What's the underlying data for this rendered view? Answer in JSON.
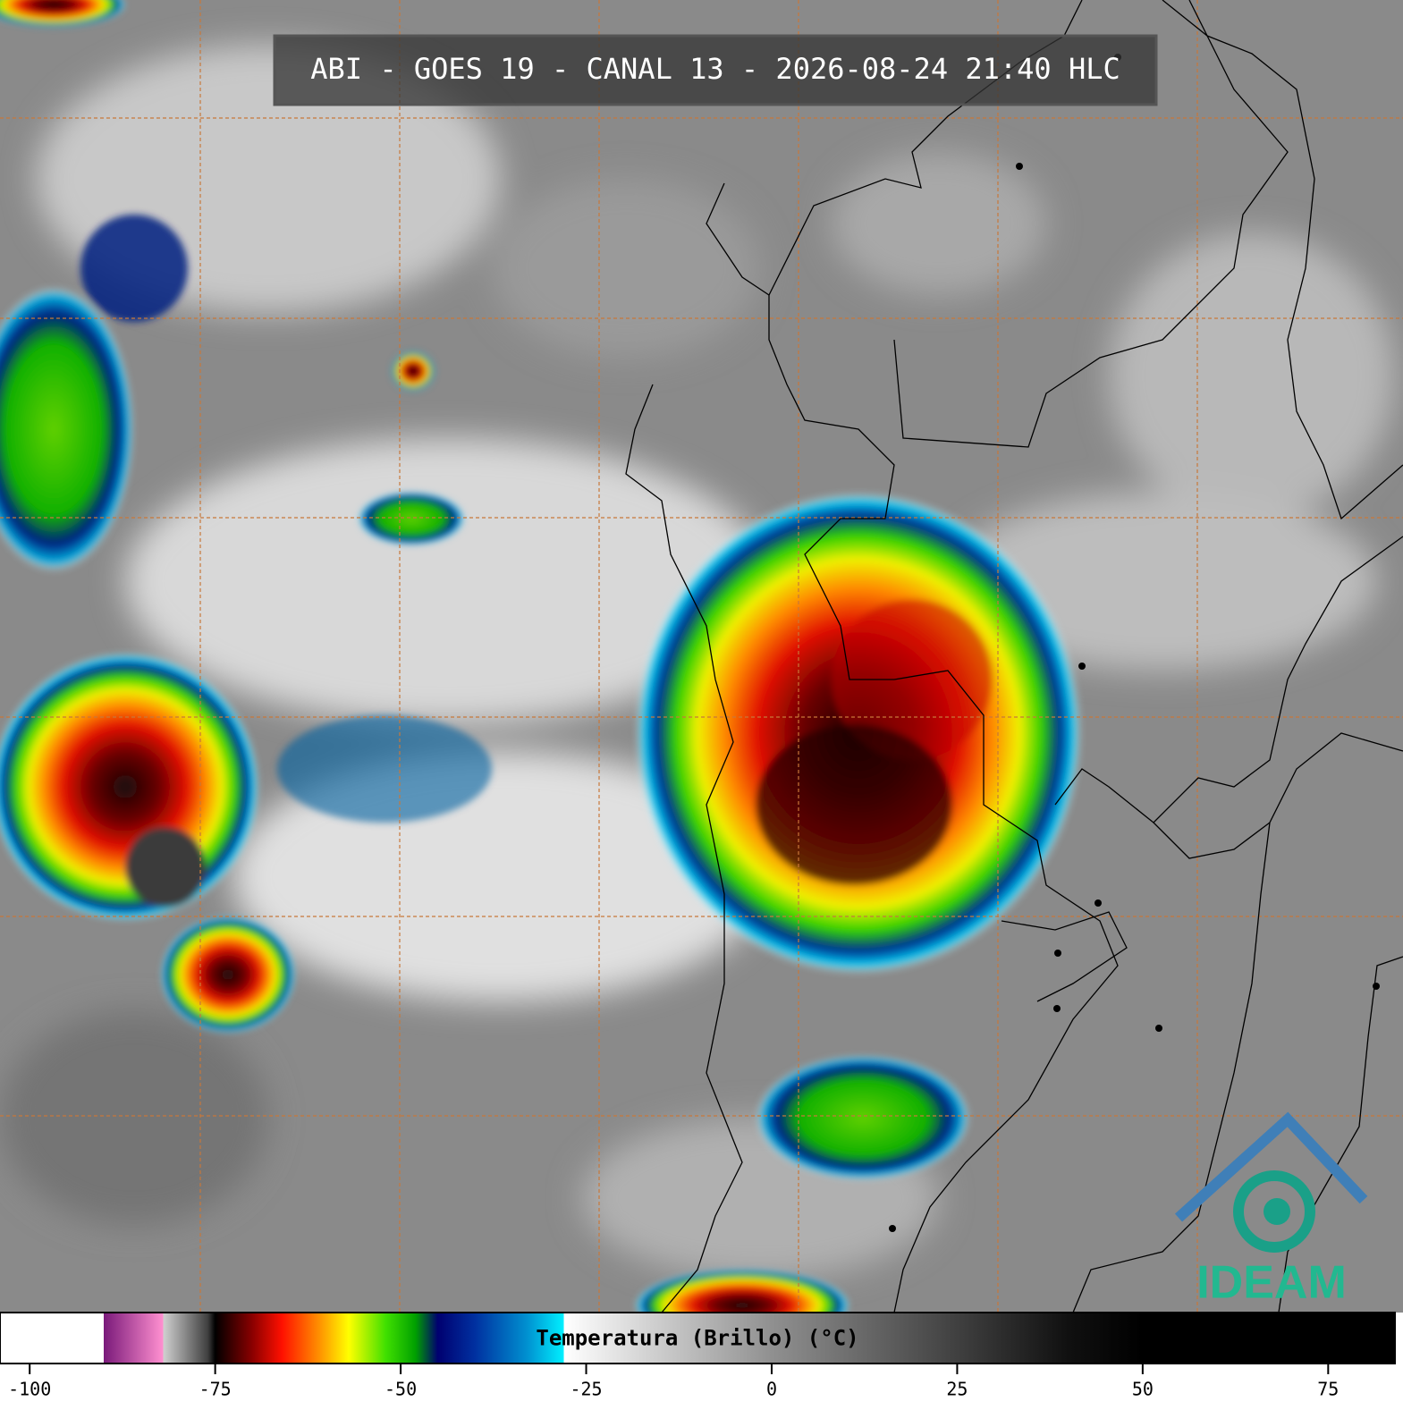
{
  "header": {
    "title": "ABI - GOES 19 - CANAL 13 - 2026-08-24 21:40 HLC"
  },
  "logo": {
    "text": "IDEAM"
  },
  "chart_data": {
    "type": "colorbar",
    "title": "Temperatura (Brillo) (°C)",
    "xlim": [
      -104,
      84
    ],
    "xticks": [
      -100,
      -75,
      -50,
      -25,
      0,
      25,
      50,
      75
    ],
    "colorscale": [
      {
        "value": -104,
        "color": "#ffffff"
      },
      {
        "value": -90,
        "color": "#ffffff"
      },
      {
        "value": -90,
        "color": "#7a1a7a"
      },
      {
        "value": -82,
        "color": "#ff90d0"
      },
      {
        "value": -82,
        "color": "#d0d0d0"
      },
      {
        "value": -76,
        "color": "#404040"
      },
      {
        "value": -75,
        "color": "#000000"
      },
      {
        "value": -70,
        "color": "#8a0000"
      },
      {
        "value": -66,
        "color": "#ff1000"
      },
      {
        "value": -61,
        "color": "#ff9000"
      },
      {
        "value": -57,
        "color": "#ffff00"
      },
      {
        "value": -52,
        "color": "#40e000"
      },
      {
        "value": -48,
        "color": "#00a000"
      },
      {
        "value": -45,
        "color": "#000070"
      },
      {
        "value": -40,
        "color": "#0030a0"
      },
      {
        "value": -33,
        "color": "#0090d0"
      },
      {
        "value": -28,
        "color": "#00f0ff"
      },
      {
        "value": -28,
        "color": "#ffffff"
      },
      {
        "value": 0,
        "color": "#909090"
      },
      {
        "value": 40,
        "color": "#101010"
      },
      {
        "value": 50,
        "color": "#000000"
      },
      {
        "value": 84,
        "color": "#000000"
      }
    ]
  }
}
